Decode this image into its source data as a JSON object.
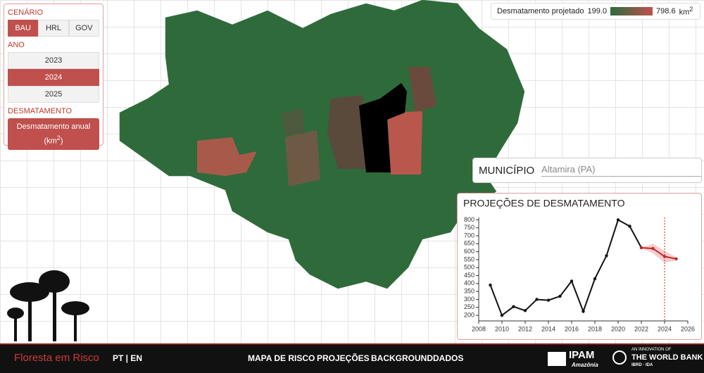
{
  "sidebar": {
    "cenario": {
      "label": "CENÁRIO",
      "options": [
        "BAU",
        "HRL",
        "GOV"
      ],
      "selected": "BAU"
    },
    "ano": {
      "label": "ANO",
      "options": [
        "2023",
        "2024",
        "2025"
      ],
      "selected": "2024"
    },
    "desmatamento": {
      "label": "DESMATAMENTO",
      "button": {
        "text": "Desmatamento anual",
        "open": "(km",
        "power": "2",
        "close": ")"
      }
    }
  },
  "legend": {
    "title": "Desmatamento projetado",
    "min": {
      "value": 199,
      "label": "199.0"
    },
    "max": {
      "value": 798.6,
      "label": "798.6"
    },
    "unit": "km",
    "power": "2",
    "colors": [
      "#2e6b3c",
      "#c0504d"
    ]
  },
  "municipio": {
    "label": "MUNICÍPIO",
    "value": "Altamira (PA)"
  },
  "chart_data": {
    "type": "line",
    "title": "PROJEÇÕES DE DESMATAMENTO",
    "x": [
      2009,
      2010,
      2011,
      2012,
      2013,
      2014,
      2015,
      2016,
      2017,
      2018,
      2019,
      2020,
      2021,
      2022,
      2023,
      2024,
      2025
    ],
    "series": [
      {
        "color": "#111111",
        "values": [
          390,
          200,
          255,
          230,
          300,
          295,
          320,
          415,
          225,
          430,
          575,
          800,
          760,
          625,
          null,
          null,
          null
        ]
      },
      {
        "color": "#c62828",
        "values": [
          null,
          null,
          null,
          null,
          null,
          null,
          null,
          null,
          null,
          null,
          null,
          null,
          null,
          625,
          620,
          570,
          555
        ]
      }
    ],
    "band": {
      "color": "#f0b8b8",
      "lower": [
        null,
        null,
        null,
        null,
        null,
        null,
        null,
        null,
        null,
        null,
        null,
        null,
        null,
        625,
        590,
        530,
        545
      ],
      "upper": [
        null,
        null,
        null,
        null,
        null,
        null,
        null,
        null,
        null,
        null,
        null,
        null,
        null,
        625,
        650,
        605,
        565
      ]
    },
    "marker_x": 2024,
    "xlim": [
      2008,
      2026
    ],
    "ylim": [
      165,
      815
    ],
    "xticks": [
      2008,
      2010,
      2012,
      2014,
      2016,
      2018,
      2020,
      2022,
      2024,
      2026
    ],
    "yticks": [
      200,
      250,
      300,
      350,
      400,
      450,
      500,
      550,
      600,
      650,
      700,
      750,
      800
    ]
  },
  "footer": {
    "brand": "Floresta em Risco",
    "lang": "PT | EN",
    "nav": [
      "MAPA DE RISCO",
      "PROJEÇÕES",
      "BACKGROUND",
      "DADOS"
    ],
    "ipam": {
      "name": "IPAM",
      "sub": "Amazônia"
    },
    "worldbank": {
      "pre": "AN INNOVATION OF",
      "name": "THE WORLD BANK",
      "sub": "IBRD · IDA"
    }
  }
}
